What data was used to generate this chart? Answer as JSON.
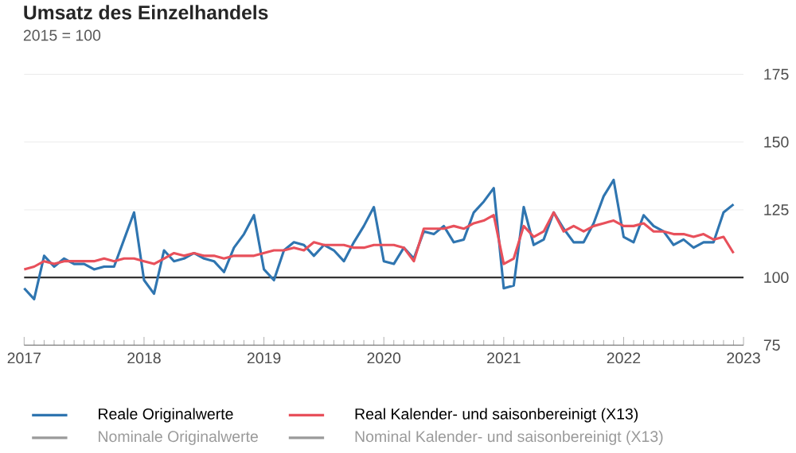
{
  "chart_data": {
    "type": "line",
    "title": "Umsatz des Einzelhandels",
    "subtitle": "2015 = 100",
    "x": [
      "2017-01",
      "2017-02",
      "2017-03",
      "2017-04",
      "2017-05",
      "2017-06",
      "2017-07",
      "2017-08",
      "2017-09",
      "2017-10",
      "2017-11",
      "2017-12",
      "2018-01",
      "2018-02",
      "2018-03",
      "2018-04",
      "2018-05",
      "2018-06",
      "2018-07",
      "2018-08",
      "2018-09",
      "2018-10",
      "2018-11",
      "2018-12",
      "2019-01",
      "2019-02",
      "2019-03",
      "2019-04",
      "2019-05",
      "2019-06",
      "2019-07",
      "2019-08",
      "2019-09",
      "2019-10",
      "2019-11",
      "2019-12",
      "2020-01",
      "2020-02",
      "2020-03",
      "2020-04",
      "2020-05",
      "2020-06",
      "2020-07",
      "2020-08",
      "2020-09",
      "2020-10",
      "2020-11",
      "2020-12",
      "2021-01",
      "2021-02",
      "2021-03",
      "2021-04",
      "2021-05",
      "2021-06",
      "2021-07",
      "2021-08",
      "2021-09",
      "2021-10",
      "2021-11",
      "2021-12",
      "2022-01",
      "2022-02",
      "2022-03",
      "2022-04",
      "2022-05",
      "2022-06",
      "2022-07",
      "2022-08",
      "2022-09",
      "2022-10",
      "2022-11",
      "2022-12"
    ],
    "series": [
      {
        "name": "Reale Originalwerte",
        "color": "#2f75b0",
        "values": [
          96,
          92,
          108,
          104,
          107,
          105,
          105,
          103,
          104,
          104,
          114,
          124,
          99,
          94,
          110,
          106,
          107,
          109,
          107,
          106,
          102,
          111,
          116,
          123,
          103,
          99,
          110,
          113,
          112,
          108,
          112,
          110,
          106,
          113,
          119,
          126,
          106,
          105,
          111,
          107,
          117,
          116,
          119,
          113,
          114,
          124,
          128,
          133,
          96,
          97,
          126,
          112,
          114,
          124,
          118,
          113,
          113,
          120,
          130,
          136,
          115,
          113,
          123,
          119,
          117,
          112,
          114,
          111,
          113,
          113,
          124,
          127
        ]
      },
      {
        "name": "Real Kalender- und saisonbereinigt (X13)",
        "color": "#e8505b",
        "values": [
          103,
          104,
          106,
          105,
          106,
          106,
          106,
          106,
          107,
          106,
          107,
          107,
          106,
          105,
          107,
          109,
          108,
          109,
          108,
          108,
          107,
          108,
          108,
          108,
          109,
          110,
          110,
          111,
          110,
          113,
          112,
          112,
          112,
          111,
          111,
          112,
          112,
          112,
          111,
          106,
          118,
          118,
          118,
          119,
          118,
          120,
          121,
          123,
          105,
          107,
          119,
          115,
          117,
          124,
          117,
          119,
          117,
          119,
          120,
          121,
          119,
          119,
          120,
          117,
          117,
          116,
          116,
          115,
          116,
          114,
          115,
          109
        ]
      },
      {
        "name": "Nominale Originalwerte",
        "color": "#9a9a9a",
        "values": [
          null,
          null,
          null,
          null,
          null,
          null,
          null,
          null,
          null,
          null,
          null,
          null,
          null,
          null,
          null,
          null,
          null,
          null,
          null,
          null,
          null,
          null,
          null,
          null,
          null,
          null,
          null,
          null,
          null,
          null,
          null,
          null,
          null,
          null,
          null,
          null,
          null,
          null,
          null,
          null,
          null,
          null,
          null,
          null,
          null,
          null,
          null,
          null,
          null,
          null,
          null,
          null,
          null,
          null,
          null,
          null,
          null,
          null,
          null,
          null,
          null,
          null,
          null,
          null,
          null,
          null,
          null,
          null,
          null,
          null,
          null,
          null
        ]
      },
      {
        "name": "Nominal Kalender- und saisonbereinigt (X13)",
        "color": "#9a9a9a",
        "values": [
          null,
          null,
          null,
          null,
          null,
          null,
          null,
          null,
          null,
          null,
          null,
          null,
          null,
          null,
          null,
          null,
          null,
          null,
          null,
          null,
          null,
          null,
          null,
          null,
          null,
          null,
          null,
          null,
          null,
          null,
          null,
          null,
          null,
          null,
          null,
          null,
          null,
          null,
          null,
          null,
          null,
          null,
          null,
          null,
          null,
          null,
          null,
          null,
          null,
          null,
          null,
          null,
          null,
          null,
          null,
          null,
          null,
          null,
          null,
          null,
          null,
          null,
          null,
          null,
          null,
          null,
          null,
          null,
          null,
          null,
          null,
          null
        ]
      }
    ],
    "xlim": [
      "2017",
      "2023"
    ],
    "xticks": [
      "2017",
      "2018",
      "2019",
      "2020",
      "2021",
      "2022",
      "2023"
    ],
    "ylim": [
      75,
      175
    ],
    "yticks": [
      75,
      100,
      125,
      150,
      175
    ],
    "ref_lines": [
      {
        "axis": "y",
        "value": 100,
        "color": "#333333"
      }
    ],
    "grid": "y",
    "legend": "bottom",
    "marker": "none",
    "line_style": "solid"
  }
}
